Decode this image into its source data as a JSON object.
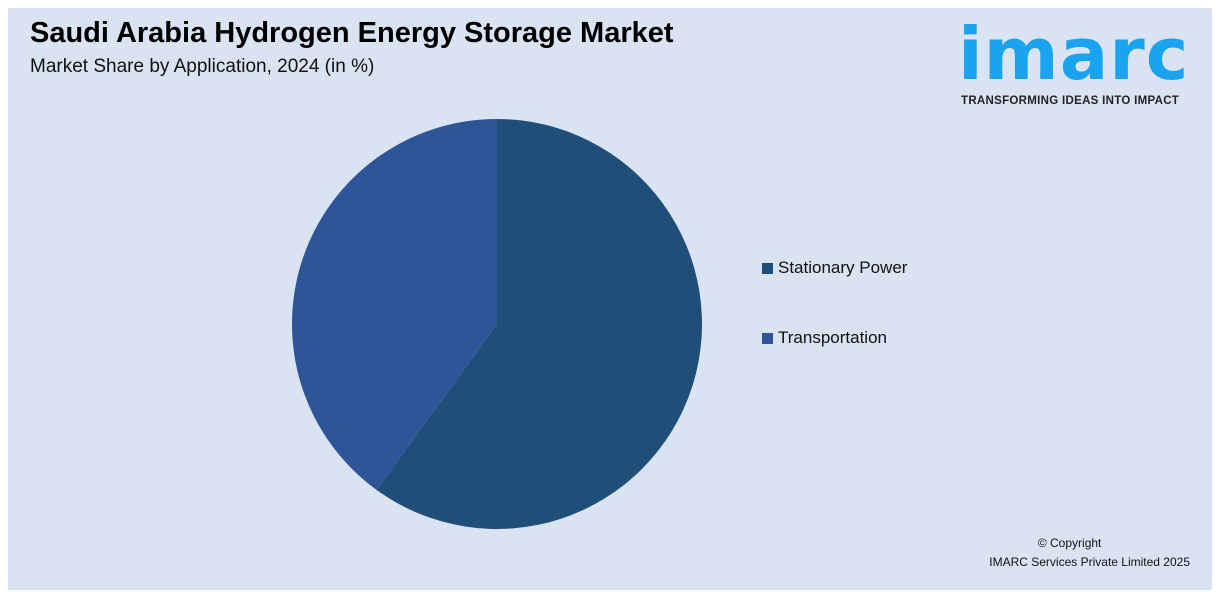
{
  "header": {
    "title": "Saudi Arabia Hydrogen Energy Storage Market",
    "subtitle": "Market Share by Application, 2024 (in %)"
  },
  "logo": {
    "word": "imarc",
    "tagline": "TRANSFORMING IDEAS INTO IMPACT",
    "color": "#1aa3ee"
  },
  "chart_data": {
    "type": "pie",
    "categories": [
      "Stationary Power",
      "Transportation"
    ],
    "values": [
      60,
      40
    ],
    "colors": [
      "#1f4e79",
      "#2e5597"
    ],
    "legend": "right",
    "start": "top, clockwise"
  },
  "footer": {
    "copyright": "© Copyright",
    "company": "IMARC Services Private Limited 2025"
  }
}
